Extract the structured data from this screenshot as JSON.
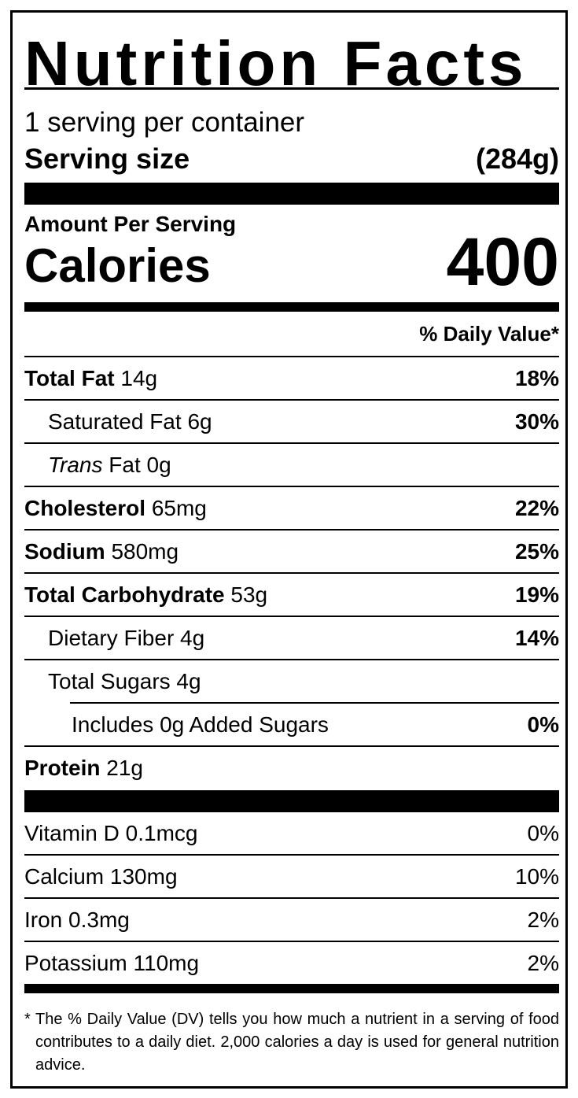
{
  "title": "Nutrition Facts",
  "servings_per_container": "1 serving per container",
  "serving_size_label": "Serving size",
  "serving_size_value": "(284g)",
  "amount_per_serving": "Amount Per Serving",
  "calories_label": "Calories",
  "calories_value": "400",
  "daily_value_header": "% Daily Value*",
  "nutrients": [
    {
      "name": "Total Fat",
      "amount": "14g",
      "dv": "18%"
    },
    {
      "name": "Saturated Fat",
      "amount": "6g",
      "dv": "30%"
    },
    {
      "name": "Trans",
      "name_suffix": "Fat",
      "amount": "0g",
      "dv": ""
    },
    {
      "name": "Cholesterol",
      "amount": "65mg",
      "dv": "22%"
    },
    {
      "name": "Sodium",
      "amount": "580mg",
      "dv": "25%"
    },
    {
      "name": "Total Carbohydrate",
      "amount": "53g",
      "dv": "19%"
    },
    {
      "name": "Dietary Fiber",
      "amount": "4g",
      "dv": "14%"
    },
    {
      "name": "Total Sugars",
      "amount": "4g",
      "dv": ""
    },
    {
      "name": "Includes 0g Added Sugars",
      "amount": "",
      "dv": "0%"
    },
    {
      "name": "Protein",
      "amount": "21g",
      "dv": ""
    }
  ],
  "vitamins": [
    {
      "name": "Vitamin D 0.1mcg",
      "dv": "0%"
    },
    {
      "name": "Calcium 130mg",
      "dv": "10%"
    },
    {
      "name": "Iron 0.3mg",
      "dv": "2%"
    },
    {
      "name": "Potassium 110mg",
      "dv": "2%"
    }
  ],
  "footnote_marker": "*",
  "footnote": "The % Daily Value (DV) tells you how much a nutrient in a serving of food contributes to a daily diet. 2,000 calories a day is used for general nutrition advice."
}
